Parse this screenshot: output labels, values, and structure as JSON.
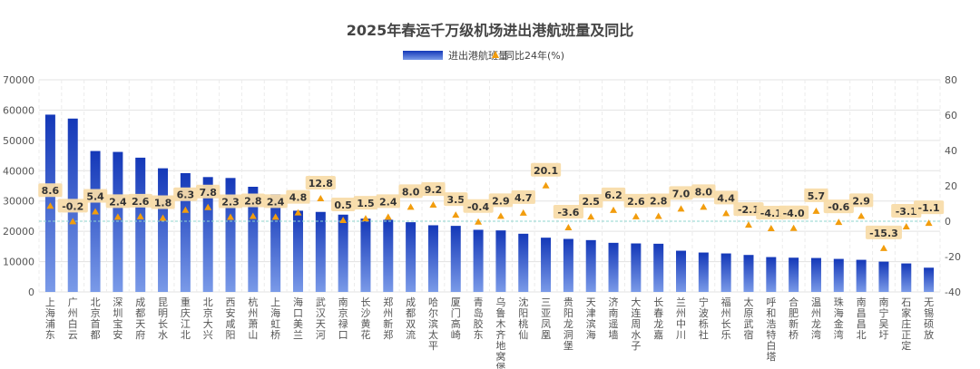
{
  "chart_data": {
    "type": "bar",
    "title": "2025年春运千万级机场进出港航班量及同比",
    "legend": {
      "position": "top-center",
      "entries": [
        "进出港航班量",
        "同比24年(%)"
      ]
    },
    "grid": true,
    "colors": {
      "bar_top": "#1438b8",
      "bar_bottom": "#7a9ae8",
      "marker": "#f29d0e",
      "label_bg": "#f8dcaa",
      "zero_line": "#8fd4cf",
      "grid": "#e3e3e3"
    },
    "categories": [
      "上海浦东",
      "广州白云",
      "北京首都",
      "深圳宝安",
      "成都天府",
      "昆明长水",
      "重庆江北",
      "北京大兴",
      "西安咸阳",
      "杭州萧山",
      "上海虹桥",
      "海口美兰",
      "武汉天河",
      "南京禄口",
      "长沙黄花",
      "郑州新郑",
      "成都双流",
      "哈尔滨太平",
      "厦门高崎",
      "青岛胶东",
      "乌鲁木齐地窝堡",
      "沈阳桃仙",
      "三亚凤凰",
      "贵阳龙洞堡",
      "天津滨海",
      "济南遥墙",
      "大连周水子",
      "长春龙嘉",
      "兰州中川",
      "宁波栎社",
      "福州长乐",
      "太原武宿",
      "呼和浩特白塔",
      "合肥新桥",
      "温州龙湾",
      "珠海金湾",
      "南昌昌北",
      "南宁吴圩",
      "石家庄正定",
      "无锡硕放"
    ],
    "series": [
      {
        "name": "进出港航班量",
        "type": "bar",
        "axis": "left",
        "values": [
          58500,
          57200,
          46500,
          46200,
          44300,
          40800,
          39200,
          37900,
          37600,
          34700,
          32200,
          26800,
          26400,
          25500,
          24200,
          23800,
          23000,
          22000,
          21800,
          20500,
          20300,
          19200,
          17900,
          17500,
          17100,
          16200,
          16000,
          15900,
          13600,
          13000,
          12700,
          12200,
          11500,
          11300,
          11200,
          10900,
          10600,
          10000,
          9400,
          8000
        ]
      },
      {
        "name": "同比24年(%)",
        "type": "scatter",
        "axis": "right",
        "values": [
          8.6,
          -0.2,
          5.4,
          2.4,
          2.6,
          1.8,
          6.3,
          7.8,
          2.3,
          2.8,
          2.4,
          4.8,
          12.8,
          0.5,
          1.5,
          2.4,
          8.0,
          9.2,
          3.5,
          -0.4,
          2.9,
          4.7,
          20.1,
          -3.6,
          2.5,
          6.2,
          2.6,
          2.8,
          7.0,
          8.0,
          4.4,
          -2.1,
          -4.1,
          -4.0,
          5.7,
          -0.6,
          2.9,
          -15.3,
          -3.1,
          -1.1
        ],
        "labels": [
          "8.6",
          "-0.2",
          "5.4",
          "2.4",
          "2.6",
          "1.8",
          "6.3",
          "7.8",
          "2.3",
          "2.8",
          "2.4",
          "4.8",
          "12.8",
          "0.5",
          "1.5",
          "2.4",
          "8.0",
          "9.2",
          "3.5",
          "-0.4",
          "2.9",
          "4.7",
          "20.1",
          "-3.6",
          "2.5",
          "6.2",
          "2.6",
          "2.8",
          "7.0",
          "8.0",
          "4.4",
          "-2.1",
          "-4.1",
          "-4.0",
          "5.7",
          "-0.6",
          "2.9",
          "-15.3",
          "-3.1",
          "-1.1"
        ]
      }
    ],
    "y_left": {
      "range": [
        0,
        70000
      ],
      "ticks": [
        "0",
        "10000",
        "20000",
        "30000",
        "40000",
        "50000",
        "60000",
        "70000"
      ]
    },
    "y_right": {
      "range": [
        -40,
        80
      ],
      "ticks": [
        "-40",
        "-20",
        "0",
        "20",
        "40",
        "60",
        "80"
      ]
    },
    "xlabel": "",
    "ylabel": ""
  }
}
